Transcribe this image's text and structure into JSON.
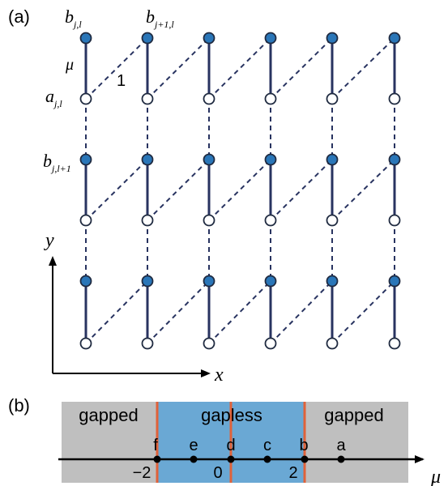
{
  "panel_a": {
    "panel_label": "(a)",
    "labels": {
      "b_jl": {
        "base": "b",
        "sub": "j,l"
      },
      "b_j1l": {
        "base": "b",
        "sub": "j+1,l"
      },
      "mu": "μ",
      "one": "1",
      "a_jl": {
        "base": "a",
        "sub": "j,l"
      },
      "b_jl1": {
        "base": "b",
        "sub": "j,l+1"
      }
    },
    "axes": {
      "x": "x",
      "y": "y"
    },
    "lattice": {
      "columns": 6,
      "cells": 3
    },
    "colors": {
      "filled_site": "#2a76b8",
      "site_outline": "#1f2a40",
      "bond": "#283360"
    }
  },
  "panel_b": {
    "panel_label": "(b)",
    "regions": [
      "gapped",
      "gapless",
      "gapped"
    ],
    "points": [
      "f",
      "e",
      "d",
      "c",
      "b",
      "a"
    ],
    "ticks": [
      "−2",
      "0",
      "2"
    ],
    "axis_label": "μ",
    "colors": {
      "gapped": "#bfbfbf",
      "gapless": "#6aa8d4",
      "boundary": "#e0623a"
    }
  }
}
